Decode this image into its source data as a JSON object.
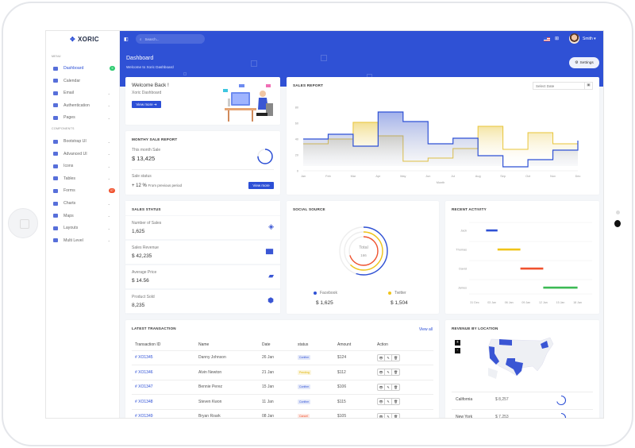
{
  "brand": "XORIC",
  "sidebar": {
    "menu_label": "MENU",
    "components_label": "COMPONENTS",
    "items": [
      {
        "label": "Dashboard",
        "active": true,
        "badge": "9",
        "badge_color": "#2ecc71"
      },
      {
        "label": "Calendar"
      },
      {
        "label": "Email",
        "chevron": true
      },
      {
        "label": "Authentication",
        "chevron": true
      },
      {
        "label": "Pages",
        "chevron": true
      }
    ],
    "components": [
      {
        "label": "Bootstrap UI",
        "chevron": true
      },
      {
        "label": "Advanced UI",
        "chevron": true
      },
      {
        "label": "Icons",
        "chevron": true
      },
      {
        "label": "Tables",
        "chevron": true
      },
      {
        "label": "Forms",
        "badge": "07",
        "badge_color": "#f0522e"
      },
      {
        "label": "Charts",
        "chevron": true
      },
      {
        "label": "Maps",
        "chevron": true
      },
      {
        "label": "Layouts",
        "chevron": true
      },
      {
        "label": "Multi Level",
        "chevron": true
      }
    ]
  },
  "topbar": {
    "search_placeholder": "Search...",
    "user": "Smith",
    "accent": "#2f51d5"
  },
  "page": {
    "title": "Dashboard",
    "subtitle": "Welcome to Xoric Dashboard",
    "settings": "Settings"
  },
  "welcome": {
    "title": "Welcome Back !",
    "subtitle": "Xoric Dashboard",
    "button": "View more"
  },
  "monthly": {
    "title": "MONTHY SALE REPORT",
    "this_month_label": "This month Sale",
    "this_month_value": "$ 13,425",
    "status_label": "Sale status",
    "change": "+ 12 %",
    "change_note": "From previous period",
    "button": "View more",
    "progress": 0.75
  },
  "sales_status": {
    "title": "SALES STATUS",
    "items": [
      {
        "label": "Number of Sales",
        "value": "1,625",
        "icon": "layers-icon"
      },
      {
        "label": "Sales Revenue",
        "value": "$ 42,235",
        "icon": "bar-chart-icon"
      },
      {
        "label": "Average Price",
        "value": "$ 14.56",
        "icon": "ticket-icon"
      },
      {
        "label": "Product Sold",
        "value": "8,235",
        "icon": "box-icon"
      }
    ]
  },
  "chart_data": [
    {
      "type": "area",
      "title": "SALES REPORT",
      "step": true,
      "xlabel": "Month",
      "ylabel": "",
      "ylim": [
        0,
        80
      ],
      "yticks": [
        "0",
        "20",
        "40",
        "60",
        "80"
      ],
      "categories": [
        "Jan",
        "Feb",
        "Mar",
        "Apr",
        "May",
        "Jun",
        "Jul",
        "Aug",
        "Sep",
        "Oct",
        "Nov",
        "Dec"
      ],
      "series": [
        {
          "color": "#2f51d5",
          "values": [
            40,
            46,
            31,
            74,
            62,
            34,
            41,
            19,
            5,
            14,
            26,
            38
          ]
        },
        {
          "color": "#e8c53a",
          "values": [
            34,
            40,
            61,
            44,
            12,
            16,
            28,
            56,
            27,
            48,
            34,
            28
          ]
        }
      ],
      "date_placeholder": "Select Date"
    },
    {
      "type": "pie",
      "title": "SOCIAL SOURCE",
      "center_label": "Total",
      "center_value": "166",
      "rings": [
        {
          "color": "#2f51d5",
          "fraction": 0.55
        },
        {
          "color": "#f0c419",
          "fraction": 0.62
        },
        {
          "color": "#f0522e",
          "fraction": 0.7
        }
      ],
      "legend": [
        {
          "name": "Facebook",
          "color": "#2f51d5",
          "value": "$ 1,625"
        },
        {
          "name": "Twitter",
          "color": "#f0c419",
          "value": "$ 1,504"
        }
      ]
    },
    {
      "type": "bar",
      "title": "RECENT ACTIVITY",
      "orientation": "timeline",
      "xticks": [
        "31 Dec",
        "03 Jan",
        "06 Jan",
        "09 Jan",
        "12 Jan",
        "15 Jan",
        "18 Jan"
      ],
      "rows": [
        {
          "name": "Jack",
          "start": "02 Jan",
          "end": "04 Jan",
          "color": "#2f51d5"
        },
        {
          "name": "Thomas",
          "start": "04 Jan",
          "end": "08 Jan",
          "color": "#f0c419"
        },
        {
          "name": "David",
          "start": "08 Jan",
          "end": "12 Jan",
          "color": "#f0522e"
        },
        {
          "name": "James",
          "start": "12 Jan",
          "end": "18 Jan",
          "color": "#3cba54"
        }
      ]
    }
  ],
  "transactions": {
    "title": "LATEST TRANSACTION",
    "view_all": "View all",
    "columns": [
      "Transaction ID",
      "Name",
      "Date",
      "status",
      "Amount",
      "Action"
    ],
    "rows": [
      {
        "id": "# XO1345",
        "name": "Danny Johnson",
        "date": "26 Jan",
        "status": "Confirm",
        "amount": "$124"
      },
      {
        "id": "# XO1346",
        "name": "Alvin Newton",
        "date": "21 Jan",
        "status": "Pending",
        "amount": "$112"
      },
      {
        "id": "# XO1347",
        "name": "Bennie Perez",
        "date": "15 Jan",
        "status": "Confirm",
        "amount": "$106"
      },
      {
        "id": "# XO1348",
        "name": "Steven Kwon",
        "date": "11 Jan",
        "status": "Confirm",
        "amount": "$115"
      },
      {
        "id": "# XO1349",
        "name": "Bryan Roark",
        "date": "08 Jan",
        "status": "Cancel",
        "amount": "$105"
      }
    ],
    "status_colors": {
      "Confirm": "#2f51d5",
      "Pending": "#e0b400",
      "Cancel": "#f0522e"
    }
  },
  "revenue": {
    "title": "REVENUE BY LOCATION",
    "zoom_in": "+",
    "zoom_out": "-",
    "rows": [
      {
        "state": "California",
        "value": "$ 8,257",
        "progress": 0.7
      },
      {
        "state": "New York",
        "value": "$ 7,253",
        "progress": 0.6
      }
    ]
  }
}
